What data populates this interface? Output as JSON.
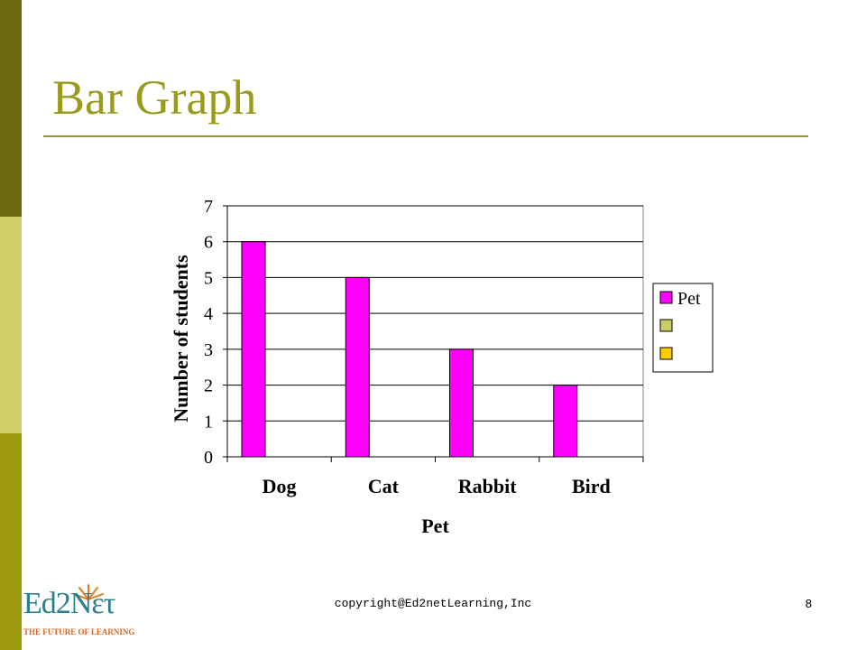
{
  "slide": {
    "title": "Bar Graph",
    "footer": "copyright@Ed2netLearning,Inc",
    "slide_number": "8",
    "logo": {
      "text": "Ed2Nετ",
      "tagline": "THE FUTURE OF LEARNING"
    }
  },
  "colors": {
    "accent_dark": "#6e6a12",
    "accent_light": "#cfcf6a",
    "accent_mid": "#9e9a10",
    "title": "#9a9a1e",
    "bar": "#ff00ff",
    "legend_swatch_2": "#cccc66",
    "legend_swatch_3": "#ffcc00"
  },
  "chart_data": {
    "type": "bar",
    "categories": [
      "Dog",
      "Cat",
      "Rabbit",
      "Bird"
    ],
    "series": [
      {
        "name": "Pet",
        "values": [
          6,
          5,
          3,
          2
        ]
      }
    ],
    "xlabel": "Pet",
    "ylabel": "Number of students",
    "ylim": [
      0,
      7
    ],
    "yticks": [
      0,
      1,
      2,
      3,
      4,
      5,
      6,
      7
    ],
    "grid": true,
    "legend": {
      "placement": "right",
      "entries": [
        "Pet",
        "",
        ""
      ]
    }
  }
}
